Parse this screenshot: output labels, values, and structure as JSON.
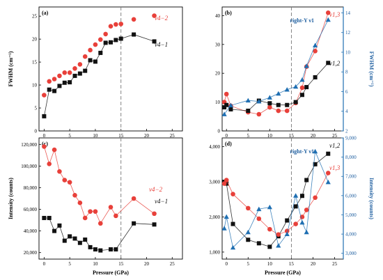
{
  "colors": {
    "red": "#e8403a",
    "black": "#111111",
    "blue": "#1f6fb2",
    "blue_dark": "#1f5fa0"
  },
  "x_label": "Pressure (GPa)",
  "chart_data": [
    {
      "id": "a",
      "panel_label": "(a)",
      "type": "line",
      "xlim": [
        -1,
        27
      ],
      "ylim": [
        0,
        27
      ],
      "xticks": [
        0,
        5,
        10,
        15,
        20,
        25
      ],
      "yticks": [
        0,
        5,
        10,
        15,
        20,
        25
      ],
      "xlabel": "",
      "ylabel": "FWHM (cm⁻¹)",
      "dashed_x": 15,
      "series": [
        {
          "name": "ν4−2",
          "color": "red",
          "marker": "circle",
          "line": false,
          "x": [
            0,
            1,
            2,
            3,
            4,
            5,
            6,
            7,
            8,
            9,
            10,
            11,
            12,
            13,
            14,
            15,
            17.5,
            21.5
          ],
          "y": [
            7.8,
            10.8,
            11.3,
            12.0,
            12.7,
            12.7,
            13.6,
            14.5,
            16.2,
            17.6,
            18.8,
            19.9,
            21.1,
            22.8,
            23.2,
            23.3,
            24.3,
            25.1
          ]
        },
        {
          "name": "ν4−1",
          "color": "black",
          "marker": "square",
          "line": true,
          "x": [
            0,
            1,
            2,
            3,
            4,
            5,
            6,
            7,
            8,
            9,
            10,
            11,
            12,
            13,
            14,
            15,
            17.5,
            21.5
          ],
          "y": [
            3.2,
            9.0,
            8.7,
            9.8,
            10.5,
            10.6,
            12.0,
            12.5,
            13.1,
            15.4,
            15.1,
            17.0,
            19.2,
            19.3,
            19.8,
            20.1,
            21.0,
            19.5
          ]
        }
      ]
    },
    {
      "id": "b",
      "panel_label": "(b)",
      "type": "line",
      "xlim": [
        -1,
        27
      ],
      "ylim": [
        0,
        43
      ],
      "xticks": [
        0,
        5,
        10,
        15,
        20,
        25
      ],
      "yticks": [
        0,
        10,
        20,
        30,
        40
      ],
      "y2lim": [
        2,
        14.6
      ],
      "y2ticks": [
        2,
        4,
        6,
        8,
        10,
        12,
        14
      ],
      "xlabel": "",
      "ylabel": "",
      "y2label": "FWHM (cm⁻¹)",
      "annotation": "right-Y ν1",
      "dashed_x": 15,
      "series": [
        {
          "name": "ν1,3",
          "color": "red",
          "marker": "circle",
          "line": true,
          "axis": "left",
          "x": [
            -0.5,
            0,
            1,
            5,
            7.5,
            10,
            12,
            14,
            16,
            17.5,
            18.5,
            20.5,
            23.5
          ],
          "y": [
            10.0,
            12.8,
            8.7,
            6.5,
            5.8,
            8.2,
            7.0,
            7.0,
            9.7,
            15.0,
            22.3,
            27.7,
            41.0
          ]
        },
        {
          "name": "ν1,2",
          "color": "black",
          "marker": "square",
          "line": true,
          "axis": "left",
          "x": [
            -0.5,
            0,
            1,
            5,
            7.5,
            10,
            12,
            14,
            16,
            17.5,
            18.5,
            20.5,
            23.5
          ],
          "y": [
            8.2,
            9.0,
            7.5,
            7.0,
            10.5,
            9.6,
            9.0,
            9.0,
            10.0,
            12.5,
            15.2,
            18.6,
            23.6
          ]
        },
        {
          "name": "right-Y ν1",
          "color": "blue",
          "marker": "triangle",
          "line": true,
          "axis": "right",
          "x": [
            -0.5,
            1,
            5,
            7.5,
            10,
            12,
            14,
            16,
            17.5,
            18.5,
            20.5,
            23.5
          ],
          "y": [
            3.7,
            4.6,
            5.1,
            5.0,
            5.4,
            5.8,
            6.2,
            6.5,
            7.2,
            8.6,
            10.7,
            13.3
          ]
        }
      ]
    },
    {
      "id": "c",
      "panel_label": "(c)",
      "type": "line",
      "xlim": [
        -1,
        27
      ],
      "ylim": [
        14000,
        126000
      ],
      "xticks": [
        0,
        5,
        10,
        15,
        20,
        25
      ],
      "yticks": [
        20000,
        40000,
        60000,
        80000,
        100000,
        120000
      ],
      "ytick_labels": [
        "20,000",
        "40,000",
        "60,000",
        "80,000",
        "100,000",
        "120,000"
      ],
      "xlabel": "Pressure (GPa)",
      "ylabel": "Intensity (counts)",
      "dashed_x": 15,
      "series": [
        {
          "name": "ν4−2",
          "color": "red",
          "marker": "circle",
          "line": true,
          "x": [
            0,
            1,
            2,
            3,
            4,
            5,
            6,
            7,
            8,
            9,
            10,
            11,
            13,
            14,
            17.5,
            21.5
          ],
          "y": [
            118000,
            102000,
            115000,
            95000,
            87000,
            85000,
            73000,
            66000,
            52000,
            58000,
            58000,
            47000,
            62000,
            54000,
            70000,
            56000
          ]
        },
        {
          "name": "ν4−1",
          "color": "black",
          "marker": "square",
          "line": true,
          "x": [
            0,
            1,
            2,
            3,
            4,
            5,
            6,
            7,
            8,
            9,
            10,
            11,
            13,
            14,
            17.5,
            21.5
          ],
          "y": [
            52000,
            52000,
            40000,
            45000,
            31000,
            35000,
            33000,
            29000,
            32000,
            25000,
            23000,
            22000,
            23000,
            23000,
            47000,
            46000
          ]
        }
      ]
    },
    {
      "id": "d",
      "panel_label": "(d)",
      "type": "line",
      "xlim": [
        -1,
        27
      ],
      "ylim": [
        800,
        4250
      ],
      "xticks": [
        0,
        5,
        10,
        15,
        20,
        25
      ],
      "yticks": [
        1000,
        2000,
        3000,
        4000
      ],
      "ytick_labels": [
        "1,000",
        "2,000",
        "3,000",
        "4,000"
      ],
      "y2lim": [
        2700,
        9000
      ],
      "y2ticks": [
        3000,
        4000,
        5000,
        6000,
        7000,
        8000,
        9000
      ],
      "y2tick_labels": [
        "3,000",
        "4,000",
        "5,000",
        "6,000",
        "7,000",
        "8,000",
        "9,000"
      ],
      "xlabel": "Pressure (GPa)",
      "ylabel": "",
      "y2label": "Intensity (counts)",
      "annotation": "right-Y ν1",
      "dashed_x": 15,
      "series": [
        {
          "name": "ν1,2",
          "color": "black",
          "marker": "square",
          "line": true,
          "axis": "left",
          "x": [
            -0.5,
            0,
            1.5,
            5,
            7.5,
            10,
            12,
            14,
            16,
            17.5,
            18.5,
            20.5,
            23.5
          ],
          "y": [
            3000,
            2950,
            1800,
            1350,
            1250,
            1150,
            1450,
            1900,
            2300,
            2600,
            3050,
            3500,
            3800
          ]
        },
        {
          "name": "ν1,3",
          "color": "red",
          "marker": "circle",
          "line": true,
          "axis": "left",
          "x": [
            -0.5,
            0,
            1.5,
            5,
            7.5,
            10,
            12,
            14,
            16,
            17.5,
            18.5,
            20.5,
            23.5
          ],
          "y": [
            2950,
            3050,
            2650,
            2250,
            1950,
            1650,
            1500,
            1600,
            1800,
            2000,
            2200,
            2550,
            3250
          ]
        },
        {
          "name": "right-Y ν1",
          "color": "blue",
          "marker": "triangle",
          "line": true,
          "axis": "right",
          "x": [
            -0.5,
            0,
            1.5,
            5,
            7.5,
            10,
            12,
            14,
            16,
            17.5,
            18.5,
            20.5,
            23.5
          ],
          "y": [
            4300,
            4900,
            3300,
            4100,
            5300,
            5400,
            3400,
            4000,
            6000,
            4600,
            4100,
            8300,
            6700
          ]
        }
      ]
    }
  ]
}
